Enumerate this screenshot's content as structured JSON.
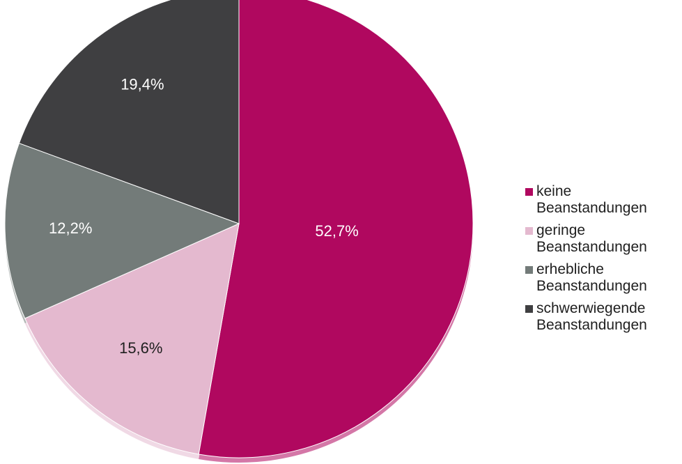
{
  "chart_data": {
    "type": "pie",
    "start_angle_deg": 0,
    "direction": "clockwise",
    "slices": [
      {
        "name": "keine Beanstandungen",
        "value": 52.7,
        "label": "52,7%",
        "color": "#b0085f",
        "label_color": "#ffffff"
      },
      {
        "name": "geringe Beanstandungen",
        "value": 15.6,
        "label": "15,6%",
        "color": "#e4b9cf",
        "label_color": "#1f1f1f"
      },
      {
        "name": "erhebliche Beanstandungen",
        "value": 12.2,
        "label": "12,2%",
        "color": "#737b79",
        "label_color": "#ffffff"
      },
      {
        "name": "schwerwiegende Beanstandungen",
        "value": 19.4,
        "label": "19,4%",
        "color": "#3f3f41",
        "label_color": "#ffffff"
      }
    ],
    "legend_position": "right"
  },
  "legend": {
    "items": [
      {
        "line1": "keine",
        "line2": "Beanstandungen",
        "color": "#b0085f"
      },
      {
        "line1": "geringe",
        "line2": "Beanstandungen",
        "color": "#e4b9cf"
      },
      {
        "line1": "erhebliche",
        "line2": "Beanstandungen",
        "color": "#737b79"
      },
      {
        "line1": "schwerwiegende",
        "line2": "Beanstandungen",
        "color": "#3f3f41"
      }
    ]
  }
}
